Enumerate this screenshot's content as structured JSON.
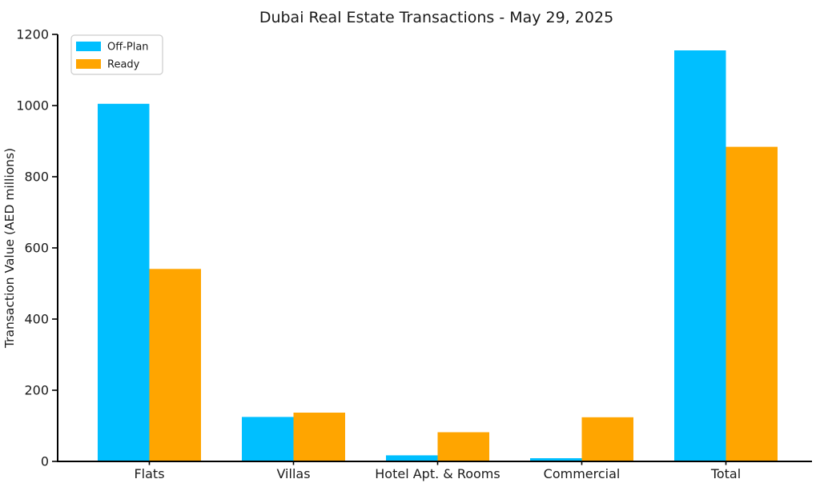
{
  "chart_data": {
    "type": "bar",
    "title": "Dubai Real Estate Transactions - May 29, 2025",
    "xlabel": "",
    "ylabel": "Transaction Value (AED millions)",
    "categories": [
      "Flats",
      "Villas",
      "Hotel Apt. & Rooms",
      "Commercial",
      "Total"
    ],
    "series": [
      {
        "name": "Off-Plan",
        "color": "#00BFFF",
        "values": [
          1005,
          125,
          17,
          9,
          1155
        ]
      },
      {
        "name": "Ready",
        "color": "#FFA500",
        "values": [
          541,
          137,
          82,
          124,
          884
        ]
      }
    ],
    "ylim": [
      0,
      1200
    ],
    "yticks": [
      0,
      200,
      400,
      600,
      800,
      1000,
      1200
    ],
    "grid": false,
    "legend_position": "upper-left",
    "legend_entries": [
      "Off-Plan",
      "Ready"
    ]
  },
  "colors": {
    "background": "#ffffff",
    "text": "#1a1a1a",
    "axis": "#000000",
    "legend_border": "#cccccc",
    "legend_background": "#ffffff"
  }
}
